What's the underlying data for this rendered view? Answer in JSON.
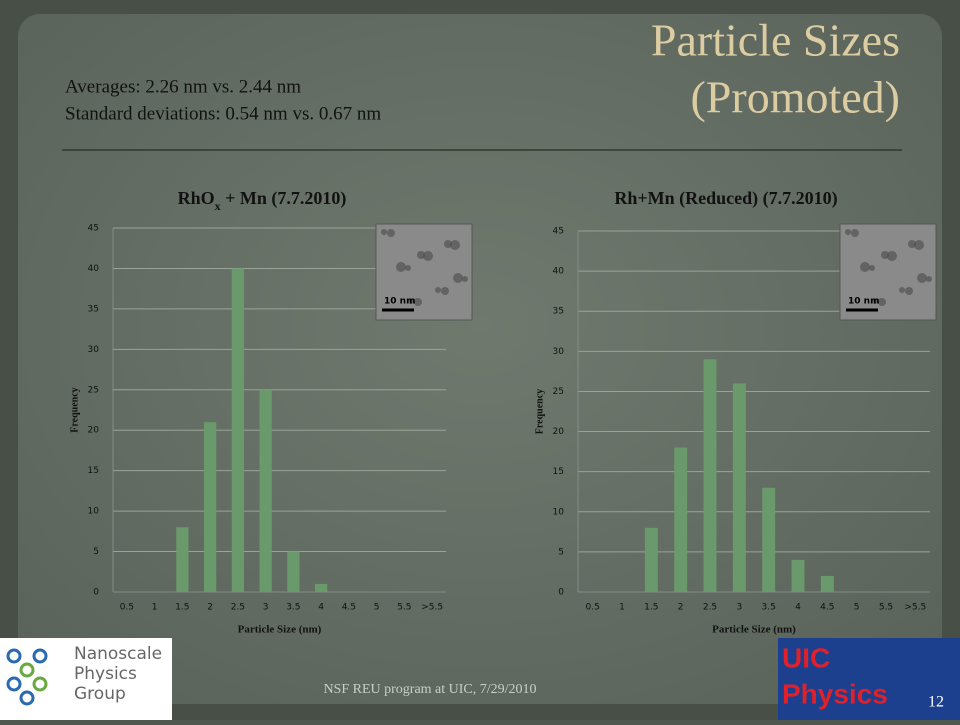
{
  "slide": {
    "title_line1": "Particle Sizes",
    "title_line2": "(Promoted)",
    "note_line1": "Averages:  2.26 nm vs. 2.44 nm",
    "note_line2": "Standard deviations: 0.54 nm vs. 0.67 nm",
    "footer": "NSF REU program at UIC, 7/29/2010",
    "page_number": "12",
    "logo_left": [
      "Nanoscale",
      "Physics",
      "Group"
    ],
    "logo_right": [
      "UIC",
      "Physics"
    ]
  },
  "chart_data": [
    {
      "type": "bar",
      "title_parts": [
        "RhO",
        "x",
        " + Mn (7.7.2010)"
      ],
      "x_label": "Particle Size (nm)",
      "y_label": "Frequency",
      "inset_label": "10 nm",
      "categories": [
        "0.5",
        "1",
        "1.5",
        "2",
        "2.5",
        "3",
        "3.5",
        "4",
        "4.5",
        "5",
        "5.5",
        ">5.5"
      ],
      "values": [
        0,
        0,
        8,
        21,
        40,
        25,
        5,
        1,
        0,
        0,
        0,
        0
      ],
      "color": "#6a9a6c",
      "ylim": [
        0,
        45
      ],
      "yticks": [
        0,
        5,
        10,
        15,
        20,
        25,
        30,
        35,
        40,
        45
      ],
      "grid": true
    },
    {
      "type": "bar",
      "title_parts": [
        "Rh+Mn (Reduced) (7.7.2010)"
      ],
      "x_label": "Particle Size (nm)",
      "y_label": "Frequency",
      "inset_label": "10 nm",
      "categories": [
        "0.5",
        "1",
        "1.5",
        "2",
        "2.5",
        "3",
        "3.5",
        "4",
        "4.5",
        "5",
        "5.5",
        ">5.5"
      ],
      "values": [
        0,
        0,
        8,
        18,
        29,
        26,
        13,
        4,
        2,
        0,
        0,
        0
      ],
      "color": "#6a9a6c",
      "ylim": [
        0,
        45
      ],
      "yticks": [
        0,
        5,
        10,
        15,
        20,
        25,
        30,
        35,
        40,
        45
      ],
      "grid": true
    }
  ]
}
